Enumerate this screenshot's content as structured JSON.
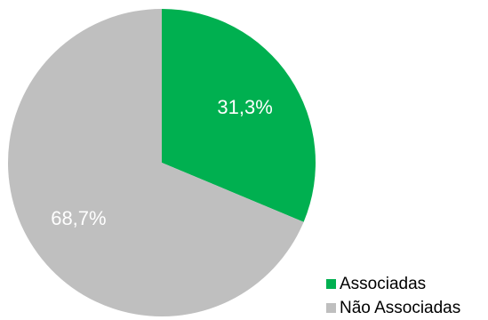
{
  "chart_data": {
    "type": "pie",
    "title": "",
    "legend_position": "bottom-right",
    "slices": [
      {
        "name": "Associadas",
        "value": 31.3,
        "label": "31,3%",
        "color": "#00b050"
      },
      {
        "name": "Não Associadas",
        "value": 68.7,
        "label": "68,7%",
        "color": "#bfbfbf"
      }
    ]
  }
}
